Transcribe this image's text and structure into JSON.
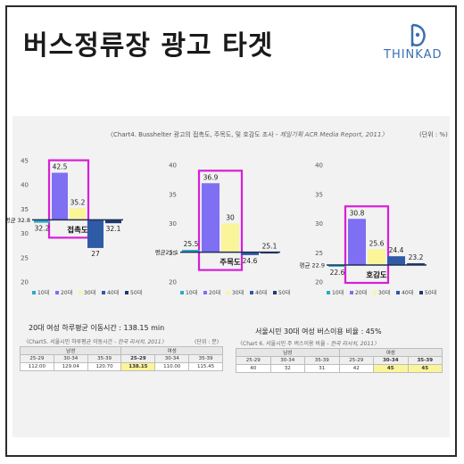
{
  "header": {
    "title": "버스정류장 광고 타겟",
    "logo_text": "THINKAD"
  },
  "colors": {
    "bar_10s": "#2eaac8",
    "bar_20s": "#7f6ff2",
    "bar_30s": "#fbf59a",
    "bar_40s": "#2f5aa6",
    "bar_50s": "#1f3a72",
    "highlight_box": "#d61fd6",
    "table_highlight": "#fbf59a",
    "logo": "#3a6fb0"
  },
  "chart_caption": {
    "text": "〈Chart4. Busshelter 광고의 접촉도, 주목도, 및 호감도 조사 - ",
    "source": "제일기획 ACR Media Report, 2011〉",
    "unit": "(단위 : %)"
  },
  "chart_data": [
    {
      "type": "bar",
      "label": "접촉도",
      "categories": [
        "10대",
        "20대",
        "30대",
        "40대",
        "50대"
      ],
      "values": [
        32.2,
        42.5,
        35.2,
        27,
        32.1
      ],
      "baseline": 32.8,
      "baseline_label": "평균 32.8",
      "ylim": [
        20,
        45
      ],
      "yticks": [
        20,
        25,
        30,
        35,
        40,
        45
      ],
      "highlighted": [
        "20대",
        "30대"
      ]
    },
    {
      "type": "bar",
      "label": "주목도",
      "categories": [
        "10대",
        "20대",
        "30대",
        "40대",
        "50대"
      ],
      "values": [
        25.5,
        36.9,
        30,
        24.6,
        25.1
      ],
      "baseline": 25.1,
      "baseline_label": "평균25.1",
      "ylim": [
        20,
        40
      ],
      "yticks": [
        20,
        25,
        30,
        35,
        40
      ],
      "highlighted": [
        "20대",
        "30대"
      ]
    },
    {
      "type": "bar",
      "label": "호감도",
      "categories": [
        "10대",
        "20대",
        "30대",
        "40대",
        "50대"
      ],
      "values": [
        22.6,
        30.8,
        25.6,
        24.4,
        23.2
      ],
      "baseline": 22.9,
      "baseline_label": "평균 22.9",
      "ylim": [
        20,
        40
      ],
      "yticks": [
        20,
        25,
        30,
        35,
        40
      ],
      "highlighted": [
        "20대",
        "30대"
      ]
    }
  ],
  "table_left": {
    "title": "20대 여성 하루평균 이동시간 : 138.15 min",
    "caption": "〈Chart5. 서울시민 하루평균 이동시간 - ",
    "source": "한국 리서치, 2011〉",
    "unit": "(단위 : 분)",
    "groups": [
      "남성",
      "여성"
    ],
    "ages": [
      "25-29",
      "30-34",
      "35-39",
      "25-29",
      "30-34",
      "35-39"
    ],
    "values": [
      "112.00",
      "129.04",
      "120.70",
      "138.15",
      "110.00",
      "115.45"
    ]
  },
  "table_right": {
    "title": "서울시민 30대 여성 버스이용 비율 : 45%",
    "caption": "〈Chart 6. 서울시민 주 버스이용 비율 - ",
    "source": "한국 리서치, 2011〉",
    "groups": [
      "남성",
      "여성"
    ],
    "ages": [
      "25-29",
      "30-34",
      "35-39",
      "25-29",
      "30-34",
      "35-39"
    ],
    "values": [
      "40",
      "32",
      "31",
      "42",
      "45",
      "45"
    ]
  }
}
